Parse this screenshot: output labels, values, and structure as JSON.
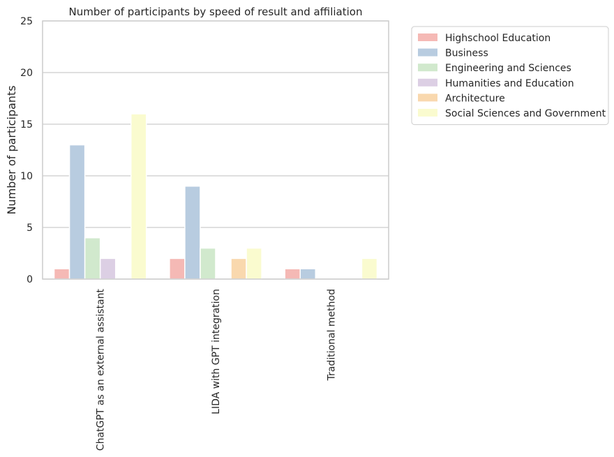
{
  "chart_data": {
    "type": "bar",
    "title": "Number of participants by speed of result and affiliation",
    "xlabel": "",
    "ylabel": "Number of participants",
    "ylim": [
      0,
      25
    ],
    "yticks": [
      0,
      5,
      10,
      15,
      20,
      25
    ],
    "grid": true,
    "legend_position": "outside-top-right",
    "categories": [
      "ChatGPT as an external assistant",
      "LIDA with GPT integration",
      "Traditional method"
    ],
    "series": [
      {
        "name": "Highschool Education",
        "color": "#f5b9b5",
        "values": [
          1,
          2,
          1
        ]
      },
      {
        "name": "Business",
        "color": "#b8cce0",
        "values": [
          13,
          9,
          1
        ]
      },
      {
        "name": "Engineering and Sciences",
        "color": "#d1e9cd",
        "values": [
          4,
          3,
          0
        ]
      },
      {
        "name": "Humanities and Education",
        "color": "#dccfe4",
        "values": [
          2,
          0,
          0
        ]
      },
      {
        "name": "Architecture",
        "color": "#f9d8ae",
        "values": [
          0,
          2,
          0
        ]
      },
      {
        "name": "Social Sciences and Government",
        "color": "#fafbcf",
        "values": [
          16,
          3,
          2
        ]
      }
    ]
  }
}
